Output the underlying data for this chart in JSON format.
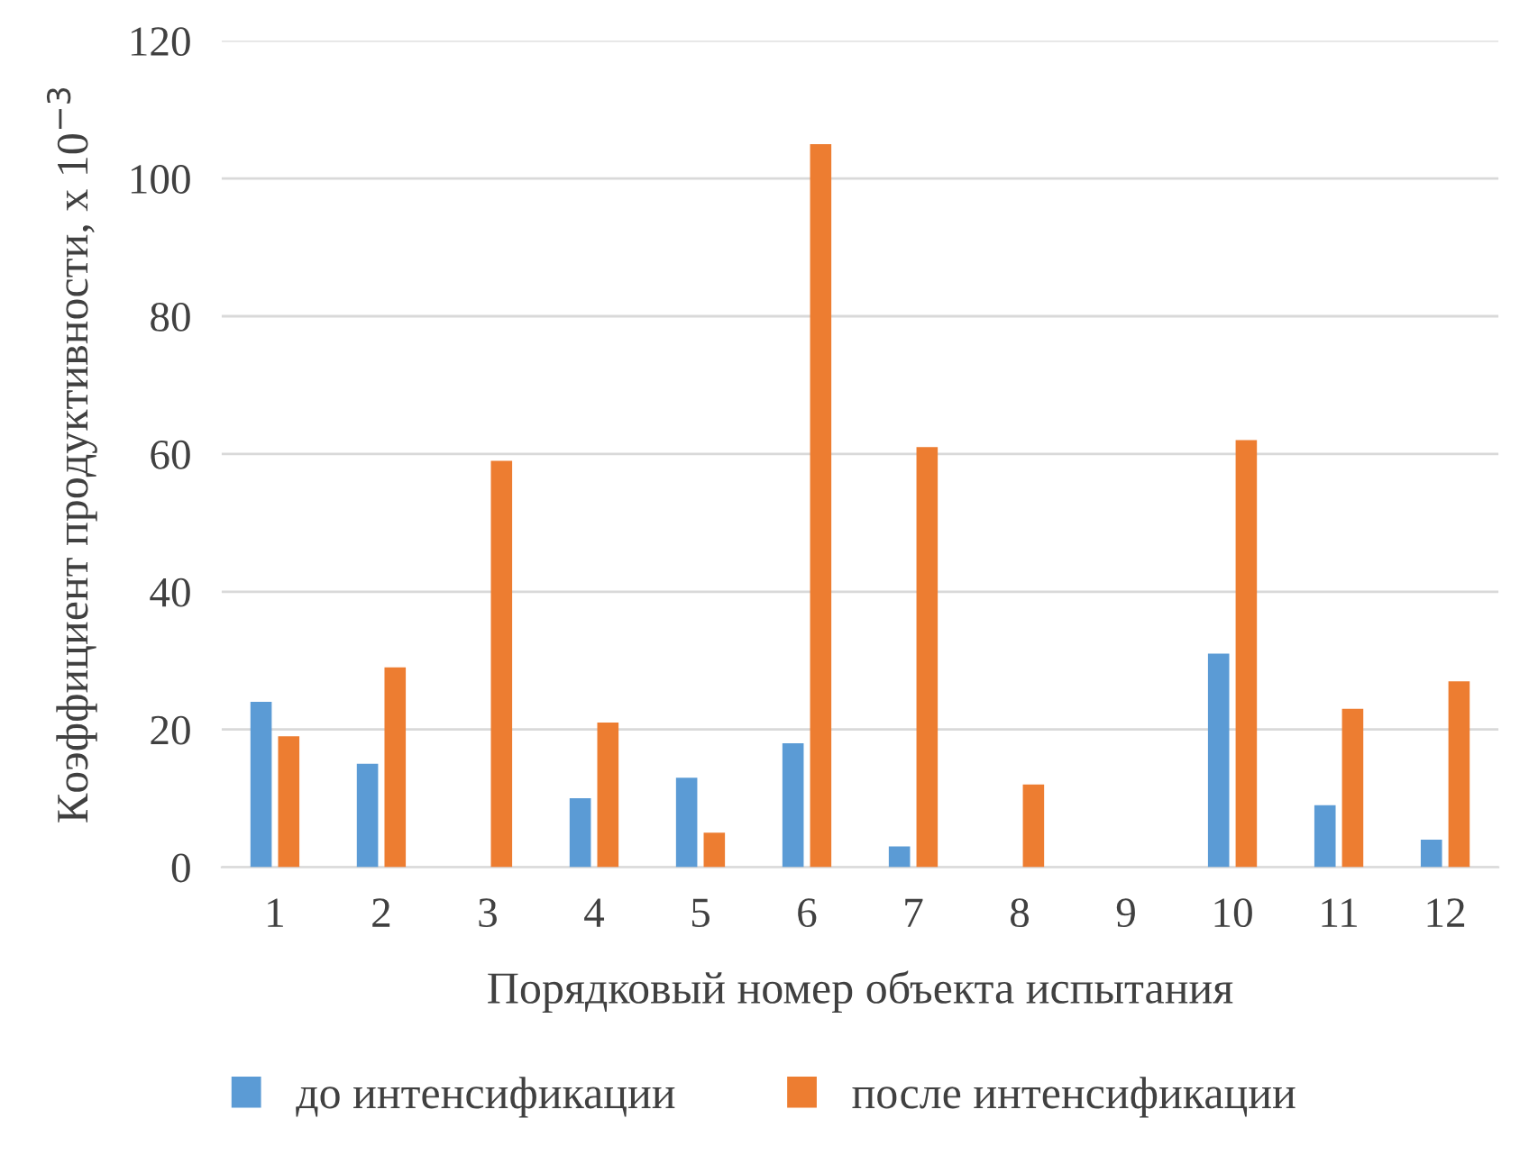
{
  "chart_data": {
    "type": "bar",
    "xlabel": "Порядковый номер объекта испытания",
    "ylabel": "Коэффициент продуктивности, х 10$^{−3}$",
    "categories": [
      "1",
      "2",
      "3",
      "4",
      "5",
      "6",
      "7",
      "8",
      "9",
      "10",
      "11",
      "12"
    ],
    "series": [
      {
        "name": "до интенсификации",
        "color": "#5b9bd5",
        "values": [
          24,
          15,
          null,
          10,
          13,
          18,
          3,
          null,
          null,
          31,
          9,
          4
        ]
      },
      {
        "name": "после интенсификации",
        "color": "#ed7d31",
        "values": [
          19,
          29,
          59,
          21,
          5,
          105,
          61,
          12,
          null,
          62,
          23,
          27
        ]
      }
    ],
    "ylim": [
      0,
      120
    ],
    "yticks": [
      0,
      20,
      40,
      60,
      80,
      100,
      120
    ],
    "grid": "y",
    "legend": "bottom"
  }
}
